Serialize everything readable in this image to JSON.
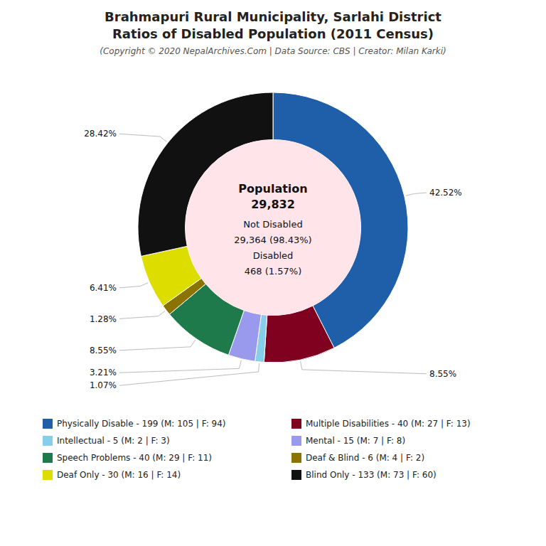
{
  "chart_data": {
    "type": "donut",
    "title": [
      "Brahmapuri Rural Municipality, Sarlahi District",
      "Ratios of Disabled Population (2011 Census)"
    ],
    "subtitle": "(Copyright © 2020 NepalArchives.Com | Data Source: CBS | Creator: Milan Karki)",
    "categories": [
      "Physically Disable - 199 (M: 105 | F: 94)",
      "Multiple Disabilities - 40 (M: 27 | F: 13)",
      "Intellectual - 5 (M: 2 | F: 3)",
      "Mental - 15 (M: 7 | F: 8)",
      "Speech Problems - 40 (M: 29 | F: 11)",
      "Deaf & Blind - 6 (M: 4 | F: 2)",
      "Deaf Only - 30 (M: 16 | F: 14)",
      "Blind Only - 133 (M: 73 | F: 60)"
    ],
    "values": [
      42.52,
      8.55,
      1.07,
      3.21,
      8.55,
      1.28,
      6.41,
      28.42
    ],
    "value_labels": [
      "42.52%",
      "8.55%",
      "1.07%",
      "3.21%",
      "8.55%",
      "1.28%",
      "6.41%",
      "28.42%"
    ],
    "colors": [
      "#1F5EA8",
      "#800020",
      "#87CEEB",
      "#9999EE",
      "#1E7A4A",
      "#8B7300",
      "#DDDD00",
      "#111111"
    ],
    "annotations": [
      "Population",
      "29,832",
      "Not Disabled",
      "29,364 (98.43%)",
      "Disabled",
      "468 (1.57%)"
    ],
    "data_labels": true,
    "legend": "bottom"
  }
}
